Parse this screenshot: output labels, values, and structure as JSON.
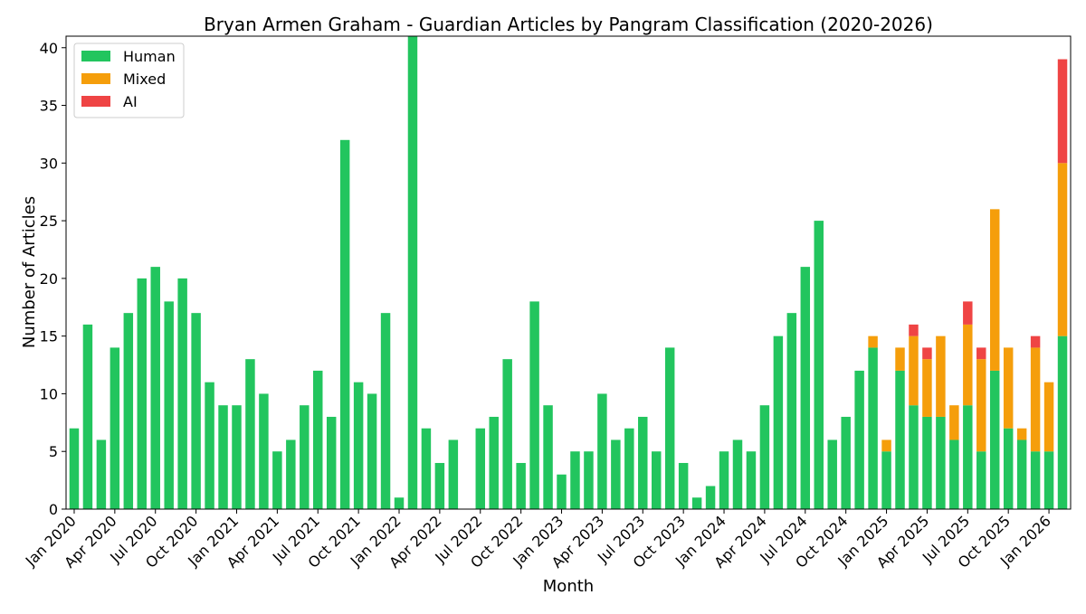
{
  "chart_data": {
    "type": "bar",
    "stacked": true,
    "title": "Bryan Armen Graham - Guardian Articles by Pangram Classification (2020-2026)",
    "xlabel": "Month",
    "ylabel": "Number of Articles",
    "ylim": [
      0,
      41
    ],
    "yticks": [
      0,
      5,
      10,
      15,
      20,
      25,
      30,
      35,
      40
    ],
    "x_tick_labels": [
      "Jan 2020",
      "Apr 2020",
      "Jul 2020",
      "Oct 2020",
      "Jan 2021",
      "Apr 2021",
      "Jul 2021",
      "Oct 2021",
      "Jan 2022",
      "Apr 2022",
      "Jul 2022",
      "Oct 2022",
      "Jan 2023",
      "Apr 2023",
      "Jul 2023",
      "Oct 2023",
      "Jan 2024",
      "Apr 2024",
      "Jul 2024",
      "Oct 2024",
      "Jan 2025",
      "Apr 2025",
      "Jul 2025",
      "Oct 2025",
      "Jan 2026"
    ],
    "categories": [
      "2020-01",
      "2020-02",
      "2020-03",
      "2020-04",
      "2020-05",
      "2020-06",
      "2020-07",
      "2020-08",
      "2020-09",
      "2020-10",
      "2020-11",
      "2020-12",
      "2021-01",
      "2021-02",
      "2021-03",
      "2021-04",
      "2021-05",
      "2021-06",
      "2021-07",
      "2021-08",
      "2021-09",
      "2021-10",
      "2021-11",
      "2021-12",
      "2022-01",
      "2022-02",
      "2022-03",
      "2022-04",
      "2022-05",
      "2022-06",
      "2022-07",
      "2022-08",
      "2022-09",
      "2022-10",
      "2022-11",
      "2022-12",
      "2023-01",
      "2023-02",
      "2023-03",
      "2023-04",
      "2023-05",
      "2023-06",
      "2023-07",
      "2023-08",
      "2023-09",
      "2023-10",
      "2023-11",
      "2023-12",
      "2024-01",
      "2024-02",
      "2024-03",
      "2024-04",
      "2024-05",
      "2024-06",
      "2024-07",
      "2024-08",
      "2024-09",
      "2024-10",
      "2024-11",
      "2024-12",
      "2025-01",
      "2025-02",
      "2025-03",
      "2025-04",
      "2025-05",
      "2025-06",
      "2025-07",
      "2025-08",
      "2025-09",
      "2025-10",
      "2025-11",
      "2025-12",
      "2026-01",
      "2026-02"
    ],
    "series": [
      {
        "name": "Human",
        "color": "#22c55e",
        "values": [
          7,
          16,
          6,
          14,
          17,
          20,
          21,
          18,
          20,
          17,
          11,
          9,
          9,
          13,
          10,
          5,
          6,
          9,
          12,
          8,
          32,
          11,
          10,
          17,
          1,
          41,
          7,
          4,
          6,
          0,
          7,
          8,
          13,
          4,
          18,
          9,
          3,
          5,
          5,
          10,
          6,
          7,
          8,
          5,
          14,
          4,
          1,
          2,
          5,
          6,
          5,
          9,
          15,
          17,
          21,
          25,
          6,
          8,
          12,
          14,
          5,
          12,
          9,
          8,
          8,
          6,
          9,
          5,
          12,
          7,
          6,
          5,
          5,
          15
        ]
      },
      {
        "name": "Mixed",
        "color": "#f59e0b",
        "values": [
          0,
          0,
          0,
          0,
          0,
          0,
          0,
          0,
          0,
          0,
          0,
          0,
          0,
          0,
          0,
          0,
          0,
          0,
          0,
          0,
          0,
          0,
          0,
          0,
          0,
          0,
          0,
          0,
          0,
          0,
          0,
          0,
          0,
          0,
          0,
          0,
          0,
          0,
          0,
          0,
          0,
          0,
          0,
          0,
          0,
          0,
          0,
          0,
          0,
          0,
          0,
          0,
          0,
          0,
          0,
          0,
          0,
          0,
          0,
          1,
          1,
          2,
          6,
          5,
          7,
          3,
          7,
          8,
          14,
          7,
          1,
          9,
          6,
          15
        ]
      },
      {
        "name": "AI",
        "color": "#ef4444",
        "values": [
          0,
          0,
          0,
          0,
          0,
          0,
          0,
          0,
          0,
          0,
          0,
          0,
          0,
          0,
          0,
          0,
          0,
          0,
          0,
          0,
          0,
          0,
          0,
          0,
          0,
          0,
          0,
          0,
          0,
          0,
          0,
          0,
          0,
          0,
          0,
          0,
          0,
          0,
          0,
          0,
          0,
          0,
          0,
          0,
          0,
          0,
          0,
          0,
          0,
          0,
          0,
          0,
          0,
          0,
          0,
          0,
          0,
          0,
          0,
          0,
          0,
          0,
          1,
          1,
          0,
          0,
          2,
          1,
          0,
          0,
          0,
          1,
          0,
          9
        ]
      }
    ],
    "grid": false,
    "legend_position": "upper-left"
  }
}
